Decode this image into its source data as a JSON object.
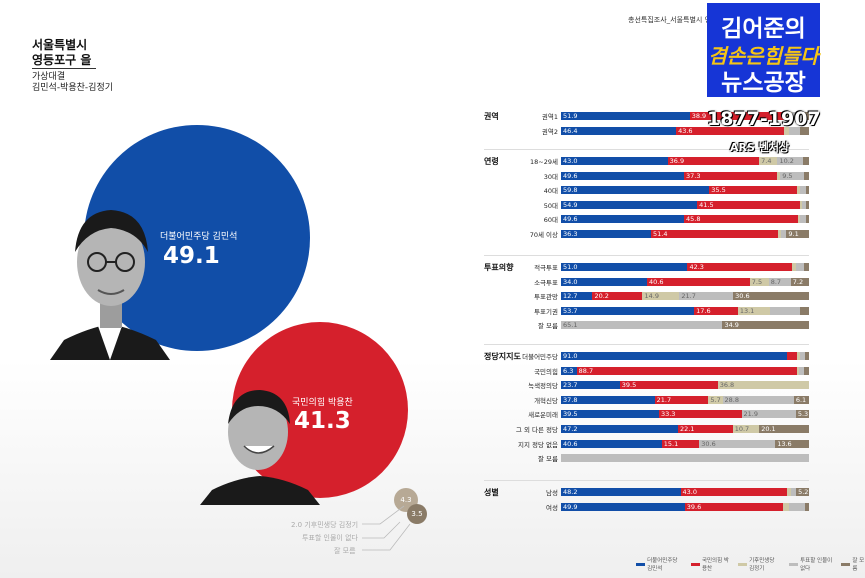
{
  "header": {
    "region_line1": "서울특별시",
    "region_line2": "영등포구 을",
    "matchup_line1": "가상대결",
    "matchup_line2": "김민석-박용찬-김정기",
    "top_note": "총선특집조사_서울특별시 영"
  },
  "overlay": {
    "logo_line1": "김어준의",
    "logo_line2": "겸손은힘들다",
    "logo_line3": "뉴스공장",
    "code": "1877-1907",
    "method": "ARS 벤처상"
  },
  "colors": {
    "dem": "#114ea8",
    "ppp": "#d5202c",
    "c3": "#cfc9a6",
    "c4": "#bdbdbd",
    "c5": "#8a7b67"
  },
  "chart_data": [
    {
      "type": "bubble",
      "items": [
        {
          "name": "더불어민주당 김민석",
          "value": 49.1
        },
        {
          "name": "국민의힘 박용찬",
          "value": 41.3
        },
        {
          "name": "기후민생당 김정기",
          "value": 2.0
        },
        {
          "name": "투표할 인물이 없다",
          "value": 4.3
        },
        {
          "name": "잘 모름",
          "value": 3.5
        }
      ],
      "other_labels": [
        "2.0  기후민생당 김정기",
        "투표할 인물이 없다",
        "잘 모름"
      ],
      "other_values": [
        "4.3",
        "3.5"
      ]
    },
    {
      "type": "stacked-bar",
      "legend": [
        "더불어민주당 김민석",
        "국민의힘 박용찬",
        "기후민생당 김정기",
        "투표할 인물이 없다",
        "잘 모름"
      ],
      "sections": [
        {
          "title": "권역",
          "rows": [
            {
              "label": "권역1",
              "values": [
                51.9,
                38.9,
                2.2,
                4.0,
                3.0
              ],
              "labels": [
                "51.9",
                "38.9",
                "",
                "",
                ""
              ]
            },
            {
              "label": "권역2",
              "values": [
                46.4,
                43.6,
                1.8,
                4.6,
                3.6
              ],
              "labels": [
                "46.4",
                "43.6",
                "",
                "",
                ""
              ]
            }
          ]
        },
        {
          "title": "연령",
          "rows": [
            {
              "label": "18~29세",
              "values": [
                43.0,
                36.9,
                7.4,
                10.2,
                2.5
              ],
              "labels": [
                "43.0",
                "36.9",
                "7.4",
                "10.2",
                ""
              ]
            },
            {
              "label": "30대",
              "values": [
                49.6,
                37.3,
                1.5,
                9.5,
                2.1
              ],
              "labels": [
                "49.6",
                "37.3",
                "",
                "9.5",
                ""
              ]
            },
            {
              "label": "40대",
              "values": [
                59.8,
                35.5,
                1.2,
                2.5,
                1.0
              ],
              "labels": [
                "59.8",
                "35.5",
                "",
                "",
                ""
              ]
            },
            {
              "label": "50대",
              "values": [
                54.9,
                41.5,
                0.8,
                1.8,
                1.0
              ],
              "labels": [
                "54.9",
                "41.5",
                "",
                "",
                ""
              ]
            },
            {
              "label": "60대",
              "values": [
                49.6,
                45.8,
                1.0,
                2.2,
                1.4
              ],
              "labels": [
                "49.6",
                "45.8",
                "",
                "",
                ""
              ]
            },
            {
              "label": "70세 이상",
              "values": [
                36.3,
                51.4,
                1.2,
                2.0,
                9.1
              ],
              "labels": [
                "36.3",
                "51.4",
                "",
                "",
                "9.1"
              ]
            }
          ]
        },
        {
          "title": "투표의향",
          "rows": [
            {
              "label": "적극투표",
              "values": [
                51.0,
                42.3,
                1.5,
                3.2,
                2.0
              ],
              "labels": [
                "51.0",
                "42.3",
                "",
                "",
                ""
              ]
            },
            {
              "label": "소극투표",
              "values": [
                34.0,
                40.6,
                7.5,
                8.7,
                7.2
              ],
              "labels": [
                "34.0",
                "40.6",
                "7.5",
                "8.7",
                "7.2"
              ]
            },
            {
              "label": "투표관망",
              "values": [
                12.7,
                20.2,
                14.9,
                21.7,
                30.6
              ],
              "labels": [
                "12.7",
                "20.2",
                "14.9",
                "21.7",
                "30.6"
              ]
            },
            {
              "label": "투표기권",
              "values": [
                53.7,
                17.6,
                13.1,
                12.1,
                3.5
              ],
              "labels": [
                "53.7",
                "17.6",
                "13.1",
                "",
                ""
              ]
            },
            {
              "label": "잘 모름",
              "values": [
                0,
                0,
                0,
                65.1,
                34.9
              ],
              "labels": [
                "",
                "",
                "",
                "65.1",
                "34.9"
              ]
            }
          ]
        },
        {
          "title": "정당지지도",
          "rows": [
            {
              "label": "더불어민주당",
              "values": [
                91.0,
                4.0,
                1.5,
                2.0,
                1.5
              ],
              "labels": [
                "91.0",
                "",
                "",
                "",
                ""
              ]
            },
            {
              "label": "국민의힘",
              "values": [
                6.3,
                88.7,
                1.0,
                2.0,
                2.0
              ],
              "labels": [
                "6.3",
                "88.7",
                "",
                "",
                ""
              ]
            },
            {
              "label": "녹색정의당",
              "values": [
                23.7,
                39.5,
                36.8,
                0,
                0
              ],
              "labels": [
                "23.7",
                "39.5",
                "36.8",
                "",
                ""
              ]
            },
            {
              "label": "개혁신당",
              "values": [
                37.8,
                21.7,
                5.7,
                28.8,
                6.1
              ],
              "labels": [
                "37.8",
                "21.7",
                "5.7",
                "28.8",
                "6.1"
              ]
            },
            {
              "label": "새로운미래",
              "values": [
                39.5,
                33.3,
                0,
                21.9,
                5.3
              ],
              "labels": [
                "39.5",
                "33.3",
                "",
                "21.9",
                "5.3"
              ]
            },
            {
              "label": "그 외 다른 정당",
              "values": [
                47.2,
                22.1,
                10.7,
                0,
                20.1
              ],
              "labels": [
                "47.2",
                "22.1",
                "10.7",
                "",
                "20.1"
              ]
            },
            {
              "label": "지지 정당 없음",
              "values": [
                40.6,
                15.1,
                0,
                30.6,
                13.6
              ],
              "labels": [
                "40.6",
                "15.1",
                "",
                "30.6",
                "13.6"
              ]
            },
            {
              "label": "잘 모름",
              "values": [
                0,
                0,
                0,
                100,
                0
              ],
              "labels": [
                "",
                "",
                "",
                "",
                ""
              ]
            }
          ]
        },
        {
          "title": "성별",
          "rows": [
            {
              "label": "남성",
              "values": [
                48.2,
                43.0,
                1.6,
                2.0,
                5.2
              ],
              "labels": [
                "48.2",
                "43.0",
                "",
                "",
                "5.2"
              ]
            },
            {
              "label": "여성",
              "values": [
                49.9,
                39.6,
                2.4,
                6.4,
                1.7
              ],
              "labels": [
                "49.9",
                "39.6",
                "",
                "",
                ""
              ]
            }
          ]
        }
      ]
    }
  ]
}
